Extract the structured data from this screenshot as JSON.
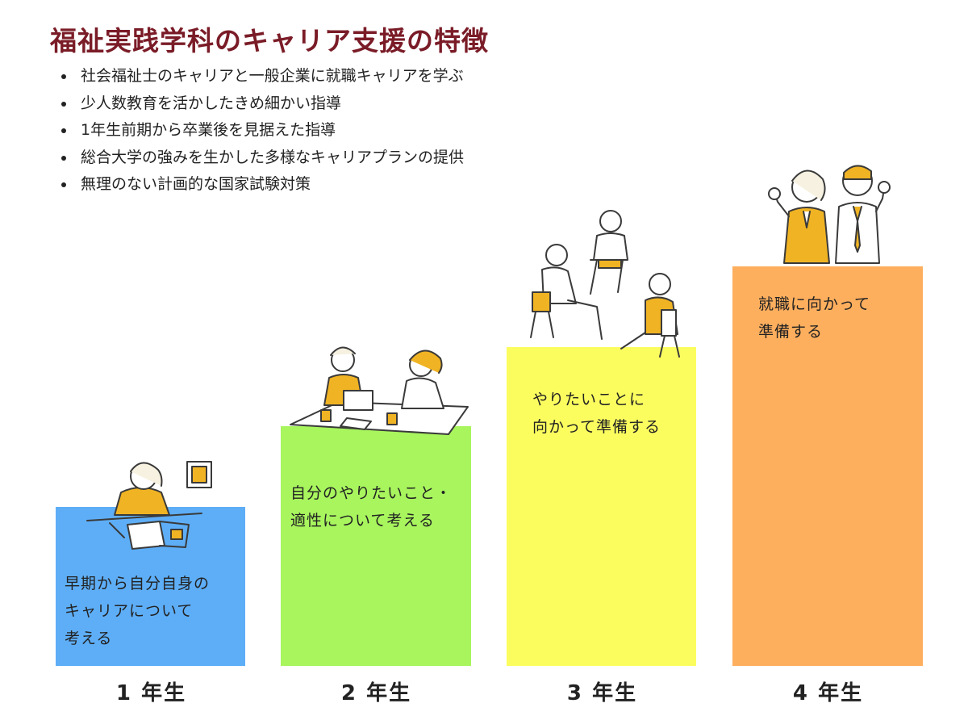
{
  "title": "福祉実践学科のキャリア支援の特徴",
  "bullets": [
    "社会福祉士のキャリアと一般企業に就職キャリアを学ぶ",
    "少人数教育を活かしたきめ細かい指導",
    "1年生前期から卒業後を見据えた指導",
    "総合大学の強みを生かした多様なキャリアプランの提供",
    "無理のない計画的な国家試験対策"
  ],
  "steps": [
    {
      "year": "1 年生",
      "text": "早期から自分自身の\nキャリアについて\n考える",
      "color": "#5eaef7"
    },
    {
      "year": "2 年生",
      "text": "自分のやりたいこと・\n適性について考える",
      "color": "#a8f55e"
    },
    {
      "year": "3 年生",
      "text": "やりたいことに\n向かって準備する",
      "color": "#fbfd5f"
    },
    {
      "year": "4 年生",
      "text": "就職に向かって\n準備する",
      "color": "#feaf5e"
    }
  ],
  "colors": {
    "title": "#7a1c27",
    "text": "#222222",
    "illustration_accent": "#f0b323",
    "line": "#3a3a3a"
  }
}
